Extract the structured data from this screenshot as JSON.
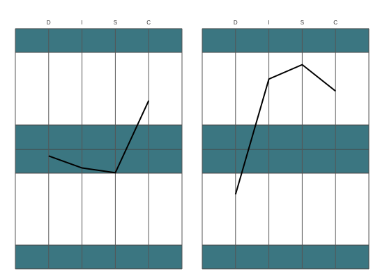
{
  "chart_data": [
    {
      "type": "line",
      "categories": [
        "D",
        "I",
        "S",
        "C"
      ],
      "values": [
        47,
        42,
        40,
        70
      ],
      "color": "#000000",
      "ylim": [
        0,
        100
      ]
    },
    {
      "type": "line",
      "categories": [
        "D",
        "I",
        "S",
        "C"
      ],
      "values": [
        31,
        79,
        85,
        74
      ],
      "color": "#000000",
      "ylim": [
        0,
        100
      ]
    }
  ]
}
